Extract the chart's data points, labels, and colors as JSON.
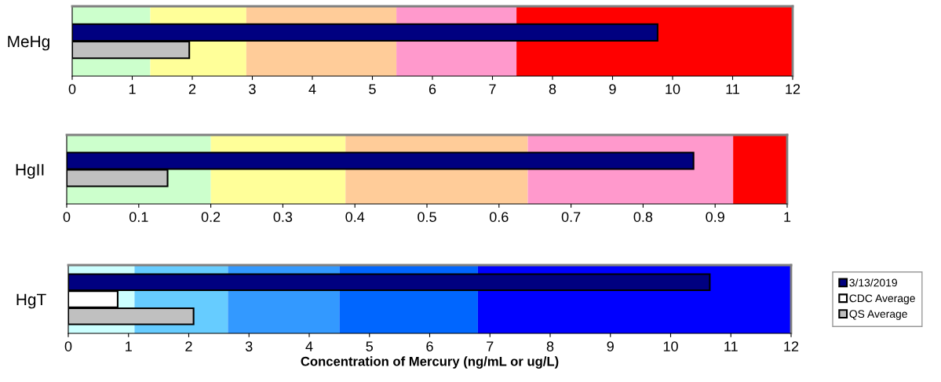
{
  "chart_data": [
    {
      "type": "bar",
      "orientation": "horizontal",
      "categories": [
        "MeHg"
      ],
      "xlim": [
        0,
        12
      ],
      "xticks": [
        0,
        1,
        2,
        3,
        4,
        5,
        6,
        7,
        8,
        9,
        10,
        11,
        12
      ],
      "grid": false,
      "legend": false,
      "series": [
        {
          "color": "#000080",
          "values": [
            9.75
          ]
        },
        {
          "color": "#c0c0c0",
          "values": [
            1.95
          ]
        }
      ],
      "bands": [
        {
          "axis": "x",
          "from": 0,
          "to": 1.3,
          "color": "#ccffcc"
        },
        {
          "axis": "x",
          "from": 1.3,
          "to": 2.9,
          "color": "#ffff99"
        },
        {
          "axis": "x",
          "from": 2.9,
          "to": 5.4,
          "color": "#ffcc99"
        },
        {
          "axis": "x",
          "from": 5.4,
          "to": 7.4,
          "color": "#ff99cc"
        },
        {
          "axis": "x",
          "from": 7.4,
          "to": 12,
          "color": "#ff0000"
        }
      ]
    },
    {
      "type": "bar",
      "orientation": "horizontal",
      "categories": [
        "HgII"
      ],
      "xlim": [
        0,
        1
      ],
      "xticks": [
        0,
        0.1,
        0.2,
        0.3,
        0.4,
        0.5,
        0.6,
        0.7,
        0.8,
        0.9,
        1
      ],
      "grid": false,
      "legend": false,
      "series": [
        {
          "color": "#000080",
          "values": [
            0.87
          ]
        },
        {
          "color": "#c0c0c0",
          "values": [
            0.14
          ]
        }
      ],
      "bands": [
        {
          "axis": "x",
          "from": 0,
          "to": 0.2,
          "color": "#ccffcc"
        },
        {
          "axis": "x",
          "from": 0.2,
          "to": 0.387,
          "color": "#ffff99"
        },
        {
          "axis": "x",
          "from": 0.387,
          "to": 0.64,
          "color": "#ffcc99"
        },
        {
          "axis": "x",
          "from": 0.64,
          "to": 0.925,
          "color": "#ff99cc"
        },
        {
          "axis": "x",
          "from": 0.925,
          "to": 1,
          "color": "#ff0000"
        }
      ]
    },
    {
      "type": "bar",
      "orientation": "horizontal",
      "categories": [
        "HgT"
      ],
      "xlim": [
        0,
        12
      ],
      "xticks": [
        0,
        1,
        2,
        3,
        4,
        5,
        6,
        7,
        8,
        9,
        10,
        11,
        12
      ],
      "grid": false,
      "legend": "right",
      "xlabel": "Concentration of Mercury (ng/mL or ug/L)",
      "series": [
        {
          "name": "3/13/2019",
          "color": "#000080",
          "values": [
            10.65
          ]
        },
        {
          "name": "CDC Average",
          "color": "#ffffff",
          "values": [
            0.82
          ]
        },
        {
          "name": "QS Average",
          "color": "#c0c0c0",
          "values": [
            2.08
          ]
        }
      ],
      "bands": [
        {
          "axis": "x",
          "from": 0,
          "to": 1.1,
          "color": "#ccffff"
        },
        {
          "axis": "x",
          "from": 1.1,
          "to": 2.65,
          "color": "#66ccff"
        },
        {
          "axis": "x",
          "from": 2.65,
          "to": 4.5,
          "color": "#3399ff"
        },
        {
          "axis": "x",
          "from": 4.5,
          "to": 6.8,
          "color": "#0066ff"
        },
        {
          "axis": "x",
          "from": 6.8,
          "to": 12,
          "color": "#0000ff"
        }
      ]
    }
  ]
}
